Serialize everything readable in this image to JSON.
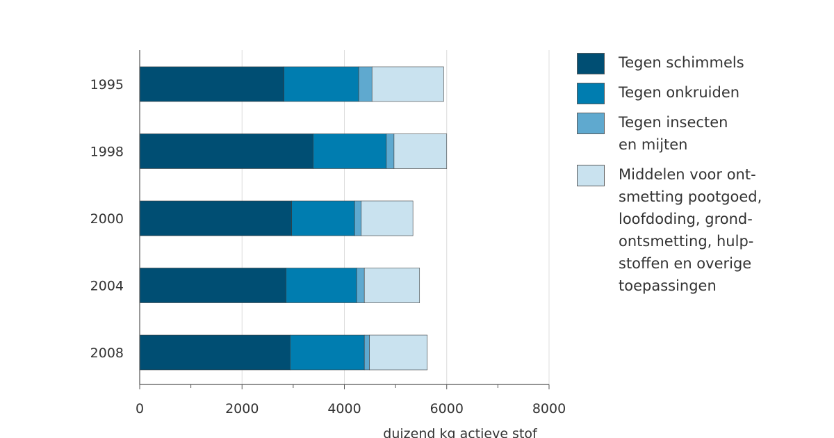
{
  "chart_data": {
    "type": "bar",
    "orientation": "horizontal",
    "stacked": true,
    "categories": [
      "1995",
      "1998",
      "2000",
      "2004",
      "2008"
    ],
    "series": [
      {
        "name": "Tegen schimmels",
        "color": "#004e73",
        "values": [
          2820,
          3390,
          2970,
          2860,
          2940
        ]
      },
      {
        "name": "Tegen onkruiden",
        "color": "#007db0",
        "values": [
          1460,
          1430,
          1230,
          1380,
          1450
        ]
      },
      {
        "name": "Tegen insecten en mijten",
        "color": "#5fa9cf",
        "values": [
          260,
          150,
          130,
          150,
          100
        ]
      },
      {
        "name": "Middelen voor ontsmetting pootgoed, loofdoding, grondontsmetting, hulpstoffen en overige toepassingen",
        "color": "#c9e2ef",
        "values": [
          1400,
          1030,
          1010,
          1080,
          1130
        ]
      }
    ],
    "x_ticks": [
      "0",
      "2000",
      "4000",
      "6000",
      "8000"
    ],
    "xlim": [
      0,
      8000
    ],
    "xlabel": "duizend kg actieve stof",
    "grid": true,
    "legend_position": "right"
  },
  "legend": {
    "items": [
      {
        "lines": [
          "Tegen schimmels"
        ],
        "color": "#004e73"
      },
      {
        "lines": [
          "Tegen onkruiden"
        ],
        "color": "#007db0"
      },
      {
        "lines": [
          "Tegen insecten",
          "en mijten"
        ],
        "color": "#5fa9cf"
      },
      {
        "lines": [
          "Middelen voor ont-",
          "smetting pootgoed,",
          "loofdoding, grond-",
          "ontsmetting, hulp-",
          "stoffen en overige",
          "toepassingen"
        ],
        "color": "#c9e2ef"
      }
    ]
  }
}
